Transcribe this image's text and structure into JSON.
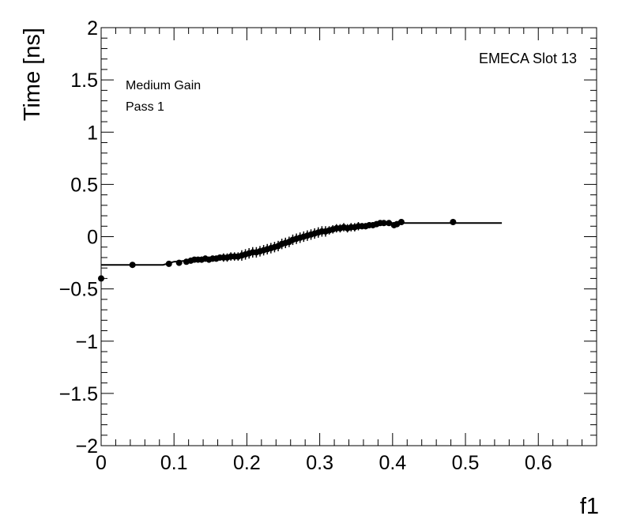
{
  "chart_data": {
    "type": "scatter",
    "title": "",
    "xlabel": "f1",
    "ylabel": "Time [ns]",
    "xlim": [
      0,
      0.68
    ],
    "ylim": [
      -2,
      2
    ],
    "grid": false,
    "x_ticks": [
      {
        "value": 0,
        "label": "0"
      },
      {
        "value": 0.1,
        "label": "0.1"
      },
      {
        "value": 0.2,
        "label": "0.2"
      },
      {
        "value": 0.3,
        "label": "0.3"
      },
      {
        "value": 0.4,
        "label": "0.4"
      },
      {
        "value": 0.5,
        "label": "0.5"
      },
      {
        "value": 0.6,
        "label": "0.6"
      }
    ],
    "y_ticks": [
      {
        "value": 2,
        "label": "2"
      },
      {
        "value": 1.5,
        "label": "1.5"
      },
      {
        "value": 1,
        "label": "1"
      },
      {
        "value": 0.5,
        "label": "0.5"
      },
      {
        "value": 0,
        "label": "0"
      },
      {
        "value": -0.5,
        "label": "−0.5"
      },
      {
        "value": -1,
        "label": "−1"
      },
      {
        "value": -1.5,
        "label": "−1.5"
      },
      {
        "value": -2,
        "label": "−2"
      }
    ],
    "annotations": {
      "top_right": "EMECA Slot 13",
      "gain": "Medium Gain",
      "pass": "Pass 1"
    },
    "fit_line": {
      "x": [
        0,
        0.085,
        0.1,
        0.15,
        0.2,
        0.25,
        0.3,
        0.35,
        0.4,
        0.55
      ],
      "y": [
        -0.27,
        -0.27,
        -0.24,
        -0.21,
        -0.16,
        -0.07,
        0.05,
        0.1,
        0.13,
        0.13
      ]
    },
    "points": [
      {
        "x": 0.0,
        "y": -0.4,
        "err": 0.0
      },
      {
        "x": 0.043,
        "y": -0.27,
        "err": 0.0
      },
      {
        "x": 0.093,
        "y": -0.26,
        "err": 0.0
      },
      {
        "x": 0.107,
        "y": -0.25,
        "err": 0.0
      },
      {
        "x": 0.117,
        "y": -0.24,
        "err": 0.01
      },
      {
        "x": 0.123,
        "y": -0.23,
        "err": 0.01
      },
      {
        "x": 0.128,
        "y": -0.22,
        "err": 0.02
      },
      {
        "x": 0.133,
        "y": -0.22,
        "err": 0.02
      },
      {
        "x": 0.138,
        "y": -0.22,
        "err": 0.03
      },
      {
        "x": 0.143,
        "y": -0.21,
        "err": 0.03
      },
      {
        "x": 0.148,
        "y": -0.22,
        "err": 0.03
      },
      {
        "x": 0.153,
        "y": -0.21,
        "err": 0.03
      },
      {
        "x": 0.158,
        "y": -0.21,
        "err": 0.03
      },
      {
        "x": 0.163,
        "y": -0.2,
        "err": 0.03
      },
      {
        "x": 0.168,
        "y": -0.2,
        "err": 0.04
      },
      {
        "x": 0.173,
        "y": -0.2,
        "err": 0.04
      },
      {
        "x": 0.178,
        "y": -0.19,
        "err": 0.04
      },
      {
        "x": 0.183,
        "y": -0.19,
        "err": 0.04
      },
      {
        "x": 0.188,
        "y": -0.19,
        "err": 0.04
      },
      {
        "x": 0.193,
        "y": -0.18,
        "err": 0.05
      },
      {
        "x": 0.198,
        "y": -0.17,
        "err": 0.05
      },
      {
        "x": 0.203,
        "y": -0.16,
        "err": 0.05
      },
      {
        "x": 0.208,
        "y": -0.15,
        "err": 0.05
      },
      {
        "x": 0.213,
        "y": -0.15,
        "err": 0.05
      },
      {
        "x": 0.218,
        "y": -0.14,
        "err": 0.05
      },
      {
        "x": 0.223,
        "y": -0.13,
        "err": 0.05
      },
      {
        "x": 0.228,
        "y": -0.12,
        "err": 0.05
      },
      {
        "x": 0.233,
        "y": -0.11,
        "err": 0.05
      },
      {
        "x": 0.238,
        "y": -0.1,
        "err": 0.05
      },
      {
        "x": 0.243,
        "y": -0.09,
        "err": 0.05
      },
      {
        "x": 0.248,
        "y": -0.07,
        "err": 0.05
      },
      {
        "x": 0.253,
        "y": -0.06,
        "err": 0.05
      },
      {
        "x": 0.258,
        "y": -0.05,
        "err": 0.05
      },
      {
        "x": 0.263,
        "y": -0.03,
        "err": 0.05
      },
      {
        "x": 0.268,
        "y": -0.02,
        "err": 0.05
      },
      {
        "x": 0.273,
        "y": -0.01,
        "err": 0.05
      },
      {
        "x": 0.278,
        "y": 0.0,
        "err": 0.05
      },
      {
        "x": 0.283,
        "y": 0.01,
        "err": 0.05
      },
      {
        "x": 0.288,
        "y": 0.02,
        "err": 0.05
      },
      {
        "x": 0.293,
        "y": 0.03,
        "err": 0.05
      },
      {
        "x": 0.298,
        "y": 0.04,
        "err": 0.05
      },
      {
        "x": 0.303,
        "y": 0.05,
        "err": 0.05
      },
      {
        "x": 0.308,
        "y": 0.05,
        "err": 0.05
      },
      {
        "x": 0.313,
        "y": 0.06,
        "err": 0.04
      },
      {
        "x": 0.318,
        "y": 0.07,
        "err": 0.04
      },
      {
        "x": 0.323,
        "y": 0.08,
        "err": 0.04
      },
      {
        "x": 0.328,
        "y": 0.08,
        "err": 0.04
      },
      {
        "x": 0.333,
        "y": 0.09,
        "err": 0.04
      },
      {
        "x": 0.338,
        "y": 0.08,
        "err": 0.04
      },
      {
        "x": 0.343,
        "y": 0.09,
        "err": 0.04
      },
      {
        "x": 0.348,
        "y": 0.09,
        "err": 0.04
      },
      {
        "x": 0.353,
        "y": 0.1,
        "err": 0.04
      },
      {
        "x": 0.358,
        "y": 0.1,
        "err": 0.03
      },
      {
        "x": 0.363,
        "y": 0.1,
        "err": 0.03
      },
      {
        "x": 0.368,
        "y": 0.11,
        "err": 0.03
      },
      {
        "x": 0.373,
        "y": 0.11,
        "err": 0.03
      },
      {
        "x": 0.378,
        "y": 0.12,
        "err": 0.02
      },
      {
        "x": 0.383,
        "y": 0.13,
        "err": 0.02
      },
      {
        "x": 0.388,
        "y": 0.13,
        "err": 0.01
      },
      {
        "x": 0.395,
        "y": 0.13,
        "err": 0.01
      },
      {
        "x": 0.402,
        "y": 0.11,
        "err": 0.0
      },
      {
        "x": 0.406,
        "y": 0.12,
        "err": 0.0
      },
      {
        "x": 0.412,
        "y": 0.14,
        "err": 0.0
      },
      {
        "x": 0.483,
        "y": 0.14,
        "err": 0.0
      }
    ]
  }
}
